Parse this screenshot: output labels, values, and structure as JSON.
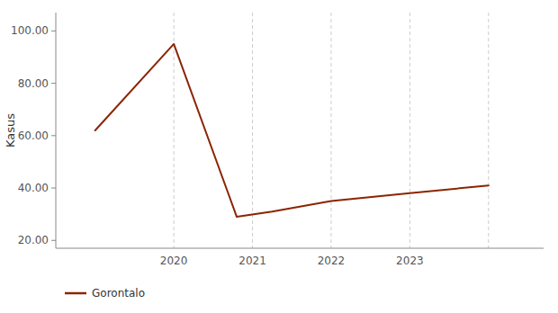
{
  "chart_data": {
    "type": "line",
    "x": [
      2018.5,
      2019.5,
      2020.3,
      2020.75,
      2021.5,
      2022.5,
      2023.5
    ],
    "series": [
      {
        "name": "Gorontalo",
        "color": "#8B2500",
        "values": [
          62,
          95,
          29,
          31,
          35,
          38,
          41
        ]
      }
    ],
    "ylabel": "Kasus",
    "xlim": [
      2018.0,
      2024.2
    ],
    "xticks": [
      {
        "value": 2019.5,
        "label": "2020"
      },
      {
        "value": 2020.5,
        "label": "2021"
      },
      {
        "value": 2021.5,
        "label": "2022"
      },
      {
        "value": 2022.5,
        "label": "2023"
      },
      {
        "value": 2023.5,
        "label": null
      }
    ],
    "ylim": [
      17,
      107
    ],
    "yticks": [
      {
        "value": 20.0,
        "label": "20.00"
      },
      {
        "value": 40.0,
        "label": "40.00"
      },
      {
        "value": 60.0,
        "label": "60.00"
      },
      {
        "value": 80.0,
        "label": "80.00"
      },
      {
        "value": 100.0,
        "label": "100.00"
      }
    ],
    "grid": "x",
    "legend": "bottom"
  }
}
